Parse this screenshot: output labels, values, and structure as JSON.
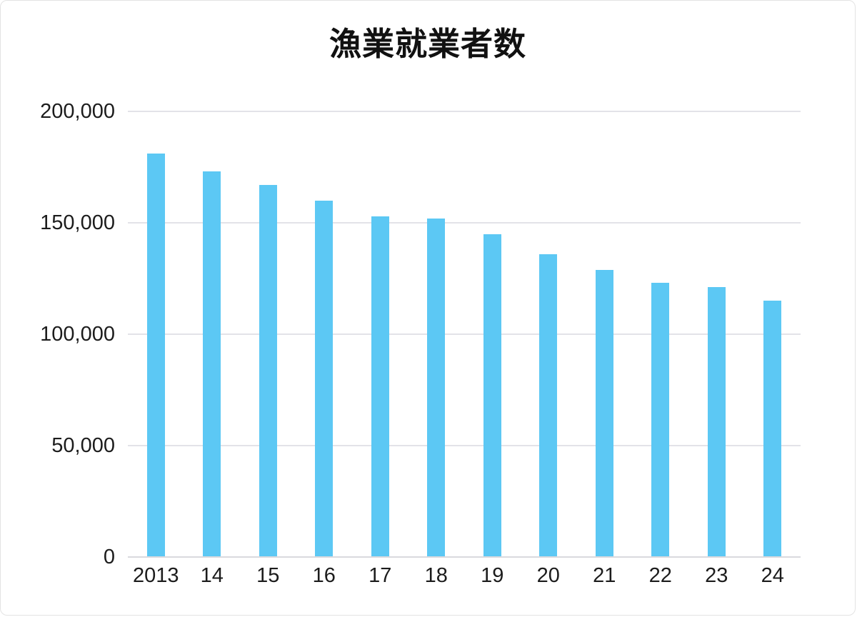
{
  "page": {
    "background_color": "#ffffff",
    "card_border_color": "#e3e3e3"
  },
  "chart_data": {
    "type": "bar",
    "title": "漁業就業者数",
    "categories": [
      "2013",
      "14",
      "15",
      "16",
      "17",
      "18",
      "19",
      "20",
      "21",
      "22",
      "23",
      "24"
    ],
    "values": [
      181000,
      173000,
      167000,
      160000,
      153000,
      152000,
      145000,
      136000,
      129000,
      123000,
      121000,
      115000
    ],
    "xlabel": "",
    "ylabel": "",
    "ylim": [
      0,
      200000
    ],
    "yticks": [
      0,
      50000,
      100000,
      150000,
      200000
    ],
    "ytick_labels": [
      "0",
      "50,000",
      "100,000",
      "150,000",
      "200,000"
    ],
    "grid": true,
    "legend_position": "none",
    "bar_color": "#5cc8f4",
    "gridline_color": "#e3e3e8",
    "axis_line_color": "#d9d9de",
    "text_color": "#1c1c1c"
  }
}
